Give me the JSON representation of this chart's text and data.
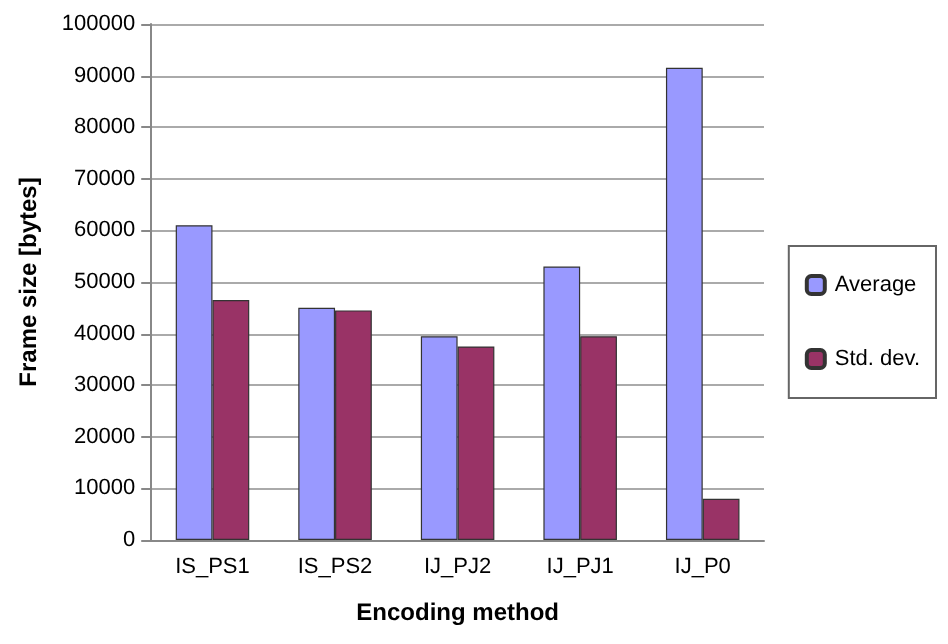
{
  "chart_data": {
    "type": "bar",
    "xlabel": "Encoding method",
    "ylabel": "Frame size [bytes]",
    "categories": [
      "IS_PS1",
      "IS_PS2",
      "IJ_PJ2",
      "IJ_PJ1",
      "IJ_P0"
    ],
    "series": [
      {
        "name": "Average",
        "color": "#9999ff",
        "values": [
          61000,
          45000,
          39500,
          53000,
          91500
        ]
      },
      {
        "name": "Std. dev.",
        "color": "#993366",
        "values": [
          46500,
          44500,
          37500,
          39500,
          8000
        ]
      }
    ],
    "ylim": [
      0,
      100000
    ],
    "yticks": [
      0,
      10000,
      20000,
      30000,
      40000,
      50000,
      60000,
      70000,
      80000,
      90000,
      100000
    ],
    "grid": "y",
    "legend": "right"
  }
}
